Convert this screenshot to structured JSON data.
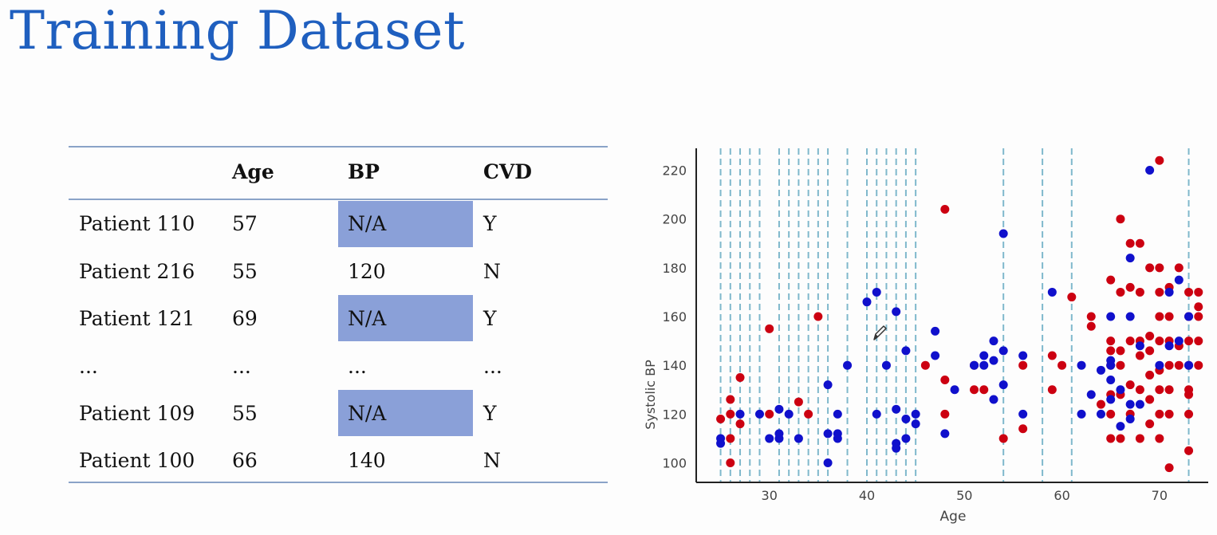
{
  "title": "Training Dataset",
  "table": {
    "headers": [
      "",
      "Age",
      "BP",
      "CVD"
    ],
    "rows": [
      [
        "Patient 110",
        "57",
        "N/A",
        "Y"
      ],
      [
        "Patient 216",
        "55",
        "120",
        "N"
      ],
      [
        "Patient 121",
        "69",
        "N/A",
        "Y"
      ],
      [
        "...",
        "...",
        "...",
        "..."
      ],
      [
        "Patient 109",
        "55",
        "N/A",
        "Y"
      ],
      [
        "Patient 100",
        "66",
        "140",
        "N"
      ]
    ],
    "highlighted_cells": [
      [
        0,
        2
      ],
      [
        2,
        2
      ],
      [
        4,
        2
      ]
    ],
    "highlight_color": "#8aa0d8"
  },
  "chart_data": {
    "type": "scatter",
    "xlabel": "Age",
    "ylabel": "Systolic BP",
    "xlim": [
      22.5,
      75
    ],
    "ylim": [
      92,
      229
    ],
    "xticks": [
      30,
      40,
      50,
      60,
      70
    ],
    "yticks": [
      100,
      120,
      140,
      160,
      180,
      200,
      220
    ],
    "grid": false,
    "vertical_dashed_lines_x": [
      25,
      26,
      27,
      28,
      29,
      31,
      32,
      33,
      34,
      35,
      36,
      38,
      40,
      41,
      42,
      43,
      44,
      45,
      54,
      58,
      61,
      73
    ],
    "dashed_line_color": "#7fb8cc",
    "series": [
      {
        "color": "#cc0011",
        "points": [
          [
            25,
            118
          ],
          [
            26,
            126
          ],
          [
            26,
            120
          ],
          [
            26,
            110
          ],
          [
            26,
            100
          ],
          [
            27,
            135
          ],
          [
            27,
            116
          ],
          [
            30,
            155
          ],
          [
            30,
            120
          ],
          [
            33,
            125
          ],
          [
            34,
            120
          ],
          [
            35,
            160
          ],
          [
            46,
            140
          ],
          [
            48,
            204
          ],
          [
            48,
            134
          ],
          [
            48,
            120
          ],
          [
            51,
            140
          ],
          [
            51,
            130
          ],
          [
            52,
            130
          ],
          [
            54,
            110
          ],
          [
            56,
            140
          ],
          [
            56,
            114
          ],
          [
            59,
            144
          ],
          [
            59,
            130
          ],
          [
            60,
            140
          ],
          [
            61,
            168
          ],
          [
            63,
            160
          ],
          [
            63,
            156
          ],
          [
            64,
            124
          ],
          [
            65,
            175
          ],
          [
            65,
            150
          ],
          [
            65,
            146
          ],
          [
            65,
            140
          ],
          [
            65,
            128
          ],
          [
            65,
            120
          ],
          [
            65,
            110
          ],
          [
            66,
            200
          ],
          [
            66,
            170
          ],
          [
            66,
            146
          ],
          [
            66,
            140
          ],
          [
            66,
            128
          ],
          [
            66,
            110
          ],
          [
            67,
            190
          ],
          [
            67,
            172
          ],
          [
            67,
            150
          ],
          [
            67,
            132
          ],
          [
            67,
            120
          ],
          [
            68,
            190
          ],
          [
            68,
            170
          ],
          [
            68,
            150
          ],
          [
            68,
            144
          ],
          [
            68,
            130
          ],
          [
            68,
            110
          ],
          [
            69,
            180
          ],
          [
            69,
            152
          ],
          [
            69,
            146
          ],
          [
            69,
            136
          ],
          [
            69,
            126
          ],
          [
            69,
            116
          ],
          [
            70,
            224
          ],
          [
            70,
            180
          ],
          [
            70,
            170
          ],
          [
            70,
            160
          ],
          [
            70,
            150
          ],
          [
            70,
            138
          ],
          [
            70,
            130
          ],
          [
            70,
            120
          ],
          [
            70,
            110
          ],
          [
            71,
            172
          ],
          [
            71,
            160
          ],
          [
            71,
            150
          ],
          [
            71,
            140
          ],
          [
            71,
            130
          ],
          [
            71,
            120
          ],
          [
            71,
            98
          ],
          [
            72,
            180
          ],
          [
            72,
            140
          ],
          [
            72,
            148
          ],
          [
            73,
            170
          ],
          [
            73,
            160
          ],
          [
            73,
            150
          ],
          [
            73,
            140
          ],
          [
            73,
            130
          ],
          [
            73,
            128
          ],
          [
            73,
            120
          ],
          [
            73,
            105
          ],
          [
            74,
            170
          ],
          [
            74,
            164
          ],
          [
            74,
            160
          ],
          [
            74,
            150
          ],
          [
            74,
            140
          ]
        ]
      },
      {
        "color": "#1010cc",
        "points": [
          [
            25,
            110
          ],
          [
            25,
            108
          ],
          [
            27,
            120
          ],
          [
            29,
            120
          ],
          [
            30,
            110
          ],
          [
            31,
            112
          ],
          [
            31,
            110
          ],
          [
            31,
            122
          ],
          [
            32,
            120
          ],
          [
            33,
            110
          ],
          [
            36,
            132
          ],
          [
            36,
            112
          ],
          [
            36,
            100
          ],
          [
            37,
            120
          ],
          [
            37,
            112
          ],
          [
            37,
            110
          ],
          [
            38,
            140
          ],
          [
            40,
            166
          ],
          [
            41,
            170
          ],
          [
            41,
            120
          ],
          [
            42,
            140
          ],
          [
            43,
            162
          ],
          [
            43,
            122
          ],
          [
            43,
            108
          ],
          [
            43,
            106
          ],
          [
            44,
            146
          ],
          [
            44,
            118
          ],
          [
            44,
            110
          ],
          [
            45,
            120
          ],
          [
            45,
            116
          ],
          [
            47,
            154
          ],
          [
            47,
            144
          ],
          [
            48,
            112
          ],
          [
            49,
            130
          ],
          [
            51,
            140
          ],
          [
            52,
            144
          ],
          [
            52,
            140
          ],
          [
            53,
            150
          ],
          [
            53,
            142
          ],
          [
            53,
            126
          ],
          [
            54,
            194
          ],
          [
            54,
            146
          ],
          [
            54,
            132
          ],
          [
            56,
            144
          ],
          [
            56,
            120
          ],
          [
            59,
            170
          ],
          [
            62,
            140
          ],
          [
            62,
            120
          ],
          [
            63,
            128
          ],
          [
            64,
            138
          ],
          [
            64,
            120
          ],
          [
            65,
            160
          ],
          [
            65,
            142
          ],
          [
            65,
            140
          ],
          [
            65,
            134
          ],
          [
            65,
            126
          ],
          [
            66,
            130
          ],
          [
            66,
            115
          ],
          [
            67,
            184
          ],
          [
            67,
            160
          ],
          [
            67,
            124
          ],
          [
            67,
            118
          ],
          [
            68,
            148
          ],
          [
            68,
            124
          ],
          [
            69,
            220
          ],
          [
            70,
            140
          ],
          [
            71,
            170
          ],
          [
            71,
            148
          ],
          [
            72,
            175
          ],
          [
            72,
            150
          ],
          [
            73,
            160
          ],
          [
            73,
            140
          ]
        ]
      }
    ]
  }
}
